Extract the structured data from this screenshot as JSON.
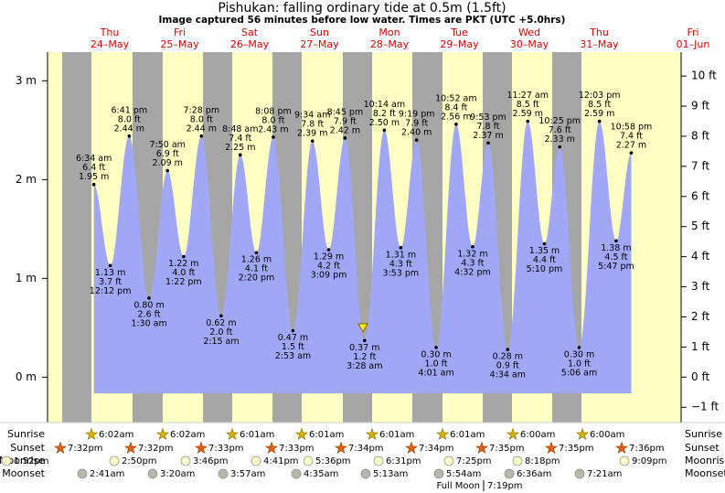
{
  "chart_data": {
    "type": "tide",
    "title": "Pishukan: falling  ordinary tide at 0.5m (1.5ft)",
    "subtitle": "Image captured 56 minutes before low water. Times are PKT (UTC +5.0hrs)",
    "days": [
      {
        "weekday": "Thu",
        "date": "24–May"
      },
      {
        "weekday": "Fri",
        "date": "25–May"
      },
      {
        "weekday": "Sat",
        "date": "26–May"
      },
      {
        "weekday": "Sun",
        "date": "27–May"
      },
      {
        "weekday": "Mon",
        "date": "28–May"
      },
      {
        "weekday": "Tue",
        "date": "29–May"
      },
      {
        "weekday": "Wed",
        "date": "30–May"
      },
      {
        "weekday": "Thu",
        "date": "31–May"
      },
      {
        "weekday": "Fri",
        "date": "01–Jun"
      }
    ],
    "series": [
      {
        "color": "#a0a8f5",
        "times": [
          "6:34 am",
          "12:12 pm",
          "6:41 pm",
          "1:30 am",
          "7:50 am",
          "1:22 pm",
          "7:28 pm",
          "2:15 am",
          "8:48 am",
          "2:20 pm",
          "8:08 pm",
          "2:53 am",
          "9:34 am",
          "3:09 pm",
          "8:45 pm",
          "3:28 am",
          "10:14 am",
          "3:53 pm",
          "9:19 pm",
          "4:01 am",
          "10:52 am",
          "4:32 pm",
          "9:53 pm",
          "4:34 am",
          "11:27 am",
          "5:10 pm",
          "10:25 pm",
          "5:06 am",
          "12:03 pm",
          "5:47 pm",
          "10:58 pm"
        ],
        "values": [
          1.95,
          1.13,
          2.44,
          0.8,
          2.09,
          1.22,
          2.44,
          0.62,
          2.25,
          1.26,
          2.43,
          0.47,
          2.39,
          1.29,
          2.42,
          0.37,
          2.5,
          1.31,
          2.4,
          0.3,
          2.56,
          1.32,
          2.37,
          0.28,
          2.59,
          1.35,
          2.33,
          0.3,
          2.59,
          1.38,
          2.27
        ],
        "value_labels": [
          "1.95 m",
          "1.13 m",
          "2.44 m",
          "0.80 m",
          "2.09 m",
          "1.22 m",
          "2.44 m",
          "0.62 m",
          "2.25 m",
          "1.26 m",
          "2.43 m",
          "0.47 m",
          "2.39 m",
          "1.29 m",
          "2.42 m",
          "0.37 m",
          "2.50 m",
          "1.31 m",
          "2.40 m",
          "0.30 m",
          "2.56 m",
          "1.32 m",
          "2.37 m",
          "0.28 m",
          "2.59 m",
          "1.35 m",
          "2.33 m",
          "0.30 m",
          "2.59 m",
          "1.38 m",
          "2.27 m"
        ],
        "feet_labels": [
          "6.4 ft",
          "3.7 ft",
          "8.0 ft",
          "2.6 ft",
          "6.9 ft",
          "4.0 ft",
          "8.0 ft",
          "2.0 ft",
          "7.4 ft",
          "4.1 ft",
          "8.0 ft",
          "1.5 ft",
          "7.8 ft",
          "4.2 ft",
          "7.9 ft",
          "1.2 ft",
          "8.2 ft",
          "4.3 ft",
          "7.9 ft",
          "1.0 ft",
          "8.4 ft",
          "4.3 ft",
          "7.8 ft",
          "0.9 ft",
          "8.5 ft",
          "4.4 ft",
          "7.6 ft",
          "1.0 ft",
          "8.5 ft",
          "4.5 ft",
          "7.4 ft"
        ]
      }
    ],
    "ylim": [
      -0.46,
      3.29
    ],
    "yticks": [
      {
        "value": 0,
        "label": "0 m"
      },
      {
        "value": 1,
        "label": "1 m"
      },
      {
        "value": 2,
        "label": "2 m"
      },
      {
        "value": 3,
        "label": "3 m"
      }
    ],
    "y2lim": [
      -1.509,
      10.794
    ],
    "y2ticks": [
      {
        "value": -1,
        "label": "−1 ft"
      },
      {
        "value": 0,
        "label": "0 ft"
      },
      {
        "value": 1,
        "label": "1 ft"
      },
      {
        "value": 2,
        "label": "2 ft"
      },
      {
        "value": 3,
        "label": "3 ft"
      },
      {
        "value": 4,
        "label": "4 ft"
      },
      {
        "value": 5,
        "label": "5 ft"
      },
      {
        "value": 6,
        "label": "6 ft"
      },
      {
        "value": 7,
        "label": "7 ft"
      },
      {
        "value": 8,
        "label": "8 ft"
      },
      {
        "value": 9,
        "label": "9 ft"
      },
      {
        "value": 10,
        "label": "10 ft"
      }
    ],
    "astro": [
      {
        "label": "Sunrise",
        "times": [
          "6:02am",
          "6:02am",
          "6:01am",
          "6:01am",
          "6:01am",
          "6:01am",
          "6:00am",
          "6:00am"
        ]
      },
      {
        "label": "Sunset",
        "times": [
          "7:32pm",
          "7:32pm",
          "7:33pm",
          "7:33pm",
          "7:34pm",
          "7:34pm",
          "7:35pm",
          "7:35pm",
          "7:36pm"
        ]
      },
      {
        "label": "Moonrise",
        "times": [
          "1:52pm",
          "2:50pm",
          "3:46pm",
          "4:41pm",
          "5:36pm",
          "6:31pm",
          "7:25pm",
          "8:18pm",
          "9:09pm"
        ]
      },
      {
        "label": "Moonset",
        "times": [
          "2:41am",
          "3:20am",
          "3:57am",
          "4:35am",
          "5:13am",
          "5:54am",
          "6:36am",
          "7:21am"
        ]
      }
    ],
    "moon_phase": {
      "name": "Full Moon",
      "time": "7:19pm"
    }
  }
}
